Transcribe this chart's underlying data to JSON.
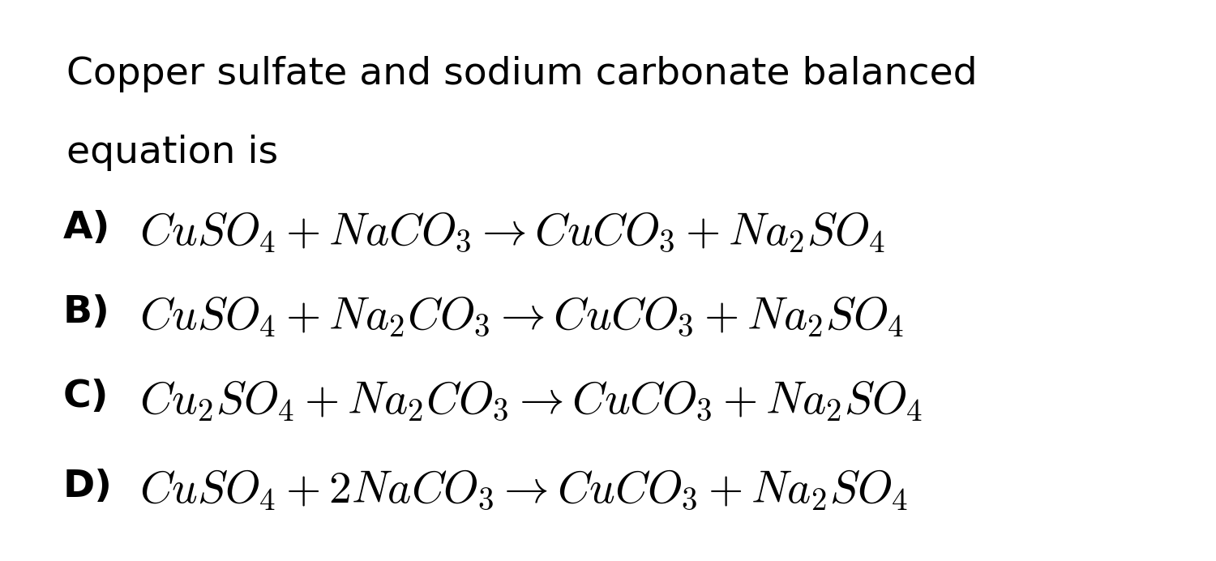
{
  "background_color": "#ffffff",
  "title_line1": "Copper sulfate and sodium carbonate balanced",
  "title_line2": "equation is",
  "title_fontsize": 34,
  "options": [
    {
      "label": "A)",
      "equation": "$CuSO_4 + NaCO_3 \\rightarrow CuCO_3 + Na_2SO_4$"
    },
    {
      "label": "B)",
      "equation": "$CuSO_4 + Na_2CO_3 \\rightarrow CuCO_3 + Na_2SO_4$"
    },
    {
      "label": "C)",
      "equation": "$Cu_2SO_4 + Na_2CO_3 \\rightarrow CuCO_3 + Na_2SO_4$"
    },
    {
      "label": "D)",
      "equation": "$CuSO_4 + 2NaCO_3 \\rightarrow CuCO_3 + Na_2SO_4$"
    }
  ],
  "label_fontsize": 34,
  "eq_fontsize": 40,
  "text_color": "#000000",
  "fig_width": 15.0,
  "fig_height": 6.92
}
